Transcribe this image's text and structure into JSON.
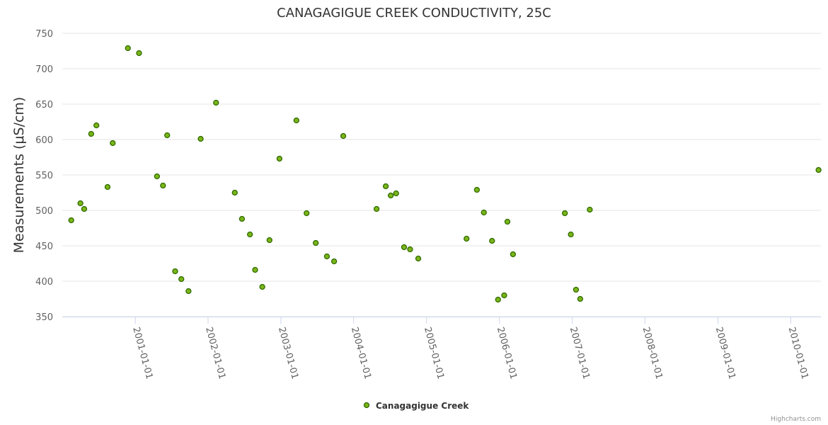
{
  "chart_data": {
    "type": "scatter",
    "title": "CANAGAGIGUE CREEK CONDUCTIVITY, 25C",
    "ylabel": "Measurements (μS/cm)",
    "xlabel": "",
    "ylim": [
      350,
      750
    ],
    "yticks": [
      350,
      400,
      450,
      500,
      550,
      600,
      650,
      700,
      750
    ],
    "xlim": [
      "2000-01-01",
      "2010-06-01"
    ],
    "xticks": [
      "2001-01-01",
      "2002-01-01",
      "2003-01-01",
      "2004-01-01",
      "2005-01-01",
      "2006-01-01",
      "2007-01-01",
      "2008-01-01",
      "2009-01-01",
      "2010-01-01"
    ],
    "grid": "horizontal",
    "legend_position": "bottom-center",
    "series": [
      {
        "name": "Canagagigue Creek",
        "color": "#7cb518",
        "marker_stroke": "#2d6a00",
        "points": [
          [
            "2000-02-15",
            486
          ],
          [
            "2000-04-01",
            510
          ],
          [
            "2000-04-20",
            502
          ],
          [
            "2000-05-25",
            608
          ],
          [
            "2000-06-20",
            620
          ],
          [
            "2000-08-15",
            533
          ],
          [
            "2000-09-10",
            595
          ],
          [
            "2000-11-25",
            729
          ],
          [
            "2001-01-20",
            722
          ],
          [
            "2001-04-20",
            548
          ],
          [
            "2001-05-20",
            535
          ],
          [
            "2001-06-10",
            606
          ],
          [
            "2001-07-20",
            414
          ],
          [
            "2001-08-20",
            403
          ],
          [
            "2001-09-25",
            386
          ],
          [
            "2001-11-25",
            601
          ],
          [
            "2002-02-10",
            652
          ],
          [
            "2002-05-15",
            525
          ],
          [
            "2002-06-20",
            488
          ],
          [
            "2002-07-30",
            466
          ],
          [
            "2002-08-25",
            416
          ],
          [
            "2002-09-30",
            392
          ],
          [
            "2002-11-05",
            458
          ],
          [
            "2002-12-25",
            573
          ],
          [
            "2003-03-20",
            627
          ],
          [
            "2003-05-10",
            496
          ],
          [
            "2003-06-25",
            454
          ],
          [
            "2003-08-20",
            435
          ],
          [
            "2003-09-25",
            428
          ],
          [
            "2003-11-10",
            605
          ],
          [
            "2004-04-25",
            502
          ],
          [
            "2004-06-10",
            534
          ],
          [
            "2004-07-05",
            521
          ],
          [
            "2004-08-01",
            524
          ],
          [
            "2004-09-10",
            448
          ],
          [
            "2004-10-10",
            445
          ],
          [
            "2004-11-20",
            432
          ],
          [
            "2005-07-20",
            460
          ],
          [
            "2005-09-10",
            529
          ],
          [
            "2005-10-15",
            497
          ],
          [
            "2005-11-25",
            457
          ],
          [
            "2005-12-25",
            374
          ],
          [
            "2006-01-25",
            380
          ],
          [
            "2006-02-10",
            484
          ],
          [
            "2006-03-10",
            438
          ],
          [
            "2006-11-25",
            496
          ],
          [
            "2006-12-25",
            466
          ],
          [
            "2007-01-20",
            388
          ],
          [
            "2007-02-10",
            375
          ],
          [
            "2007-03-30",
            501
          ],
          [
            "2010-05-20",
            557
          ]
        ]
      }
    ]
  },
  "credits": "Highcharts.com"
}
